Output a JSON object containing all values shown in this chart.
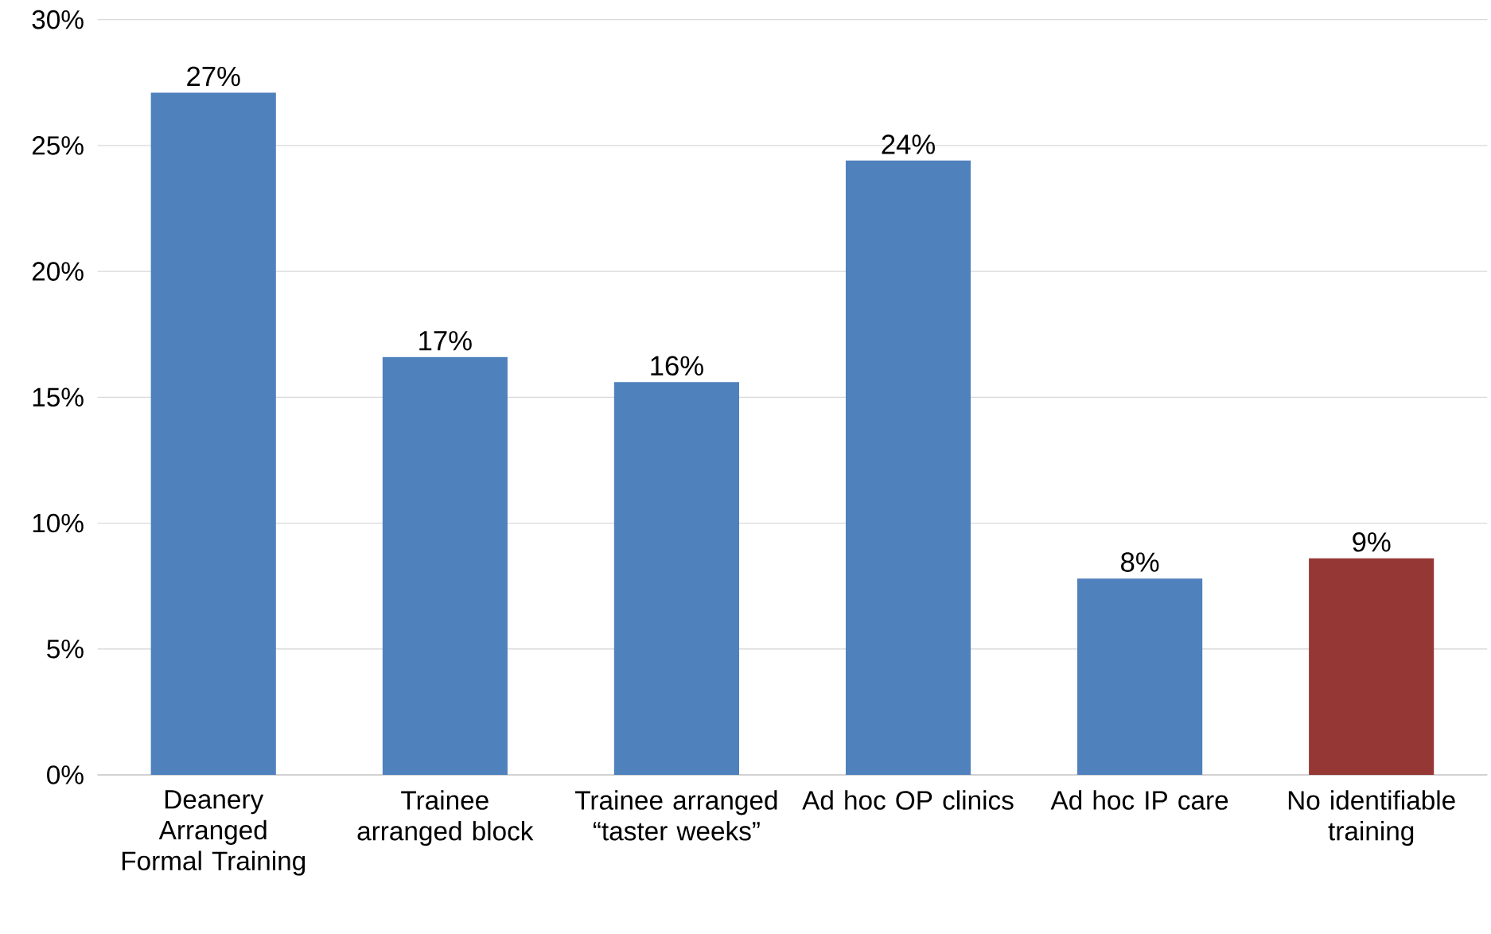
{
  "chart_data": {
    "type": "bar",
    "categories": [
      "Deanery Arranged Formal Training",
      "Trainee arranged block",
      "Trainee arranged “taster weeks”",
      "Ad hoc OP clinics",
      "Ad hoc IP care",
      "No identifiable training"
    ],
    "values": [
      27.1,
      16.6,
      15.6,
      24.4,
      7.8,
      8.6
    ],
    "value_labels": [
      "27%",
      "17%",
      "16%",
      "24%",
      "8%",
      "9%"
    ],
    "colors": [
      "#4f81bd",
      "#4f81bd",
      "#4f81bd",
      "#4f81bd",
      "#4f81bd",
      "#953735"
    ],
    "ylim": [
      0,
      30
    ],
    "yticks": [
      {
        "value": 0,
        "label": "0%"
      },
      {
        "value": 5,
        "label": "5%"
      },
      {
        "value": 10,
        "label": "10%"
      },
      {
        "value": 15,
        "label": "15%"
      },
      {
        "value": 20,
        "label": "20%"
      },
      {
        "value": 25,
        "label": "25%"
      },
      {
        "value": 30,
        "label": "30%"
      }
    ],
    "grid": "y"
  }
}
